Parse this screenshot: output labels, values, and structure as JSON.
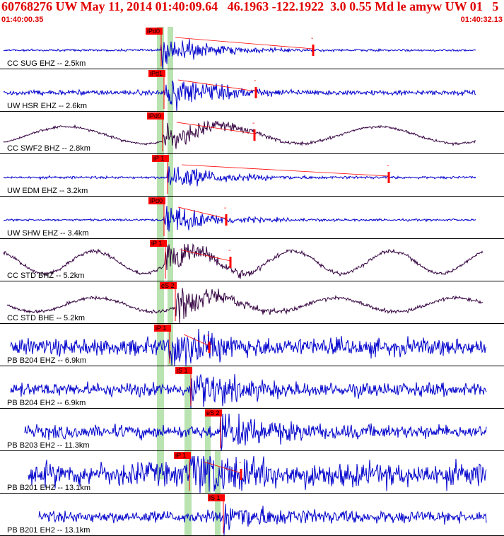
{
  "header": {
    "title": "60768276 UW May 11, 2014 01:40:09.64   46.1963 -122.1922  3.0 0.55 Md le amyw UW 01   5",
    "start_time": "01:40:00.35",
    "end_time": "01:40:32.13"
  },
  "colors": {
    "header_red": "#e00000",
    "trace_blue": "#0000cc",
    "trace_purple": "#33003f",
    "pick_red": "#ff0000",
    "band_green": "#b9e3b0"
  },
  "traces": [
    {
      "label": "CC SUG EHZ -- 2.5km",
      "color": "blue",
      "pick": "iPd0"
    },
    {
      "label": "UW HSR EHZ -- 2.6km",
      "color": "blue",
      "pick": "iPd1"
    },
    {
      "label": "CC SWF2 BHZ -- 2.8km",
      "color": "purple",
      "pick": "iPd0"
    },
    {
      "label": "UW EDM EHZ -- 3.2km",
      "color": "blue",
      "pick": "iP 1"
    },
    {
      "label": "UW SHW EHZ -- 3.4km",
      "color": "blue",
      "pick": "iPd0"
    },
    {
      "label": "CC STD BHZ -- 5.2km",
      "color": "purple",
      "pick": "iP 1"
    },
    {
      "label": "CC STD BHE -- 5.2km",
      "color": "purple",
      "pick": "eS 2"
    },
    {
      "label": "PB B204 EHZ -- 6.9km",
      "color": "blue",
      "pick": "iP 1"
    },
    {
      "label": "PB B204 EH2 -- 6.9km",
      "color": "blue",
      "pick": "iS 1"
    },
    {
      "label": "PB B203 EH2 -- 11.3km",
      "color": "blue",
      "pick": "eS 2"
    },
    {
      "label": "PB B201 EHZ -- 13.1km",
      "color": "blue",
      "pick": "iP 1"
    },
    {
      "label": "PB B201 EH2 -- 13.1km",
      "color": "blue",
      "pick": "iS 1"
    }
  ],
  "coda_marker": "-"
}
